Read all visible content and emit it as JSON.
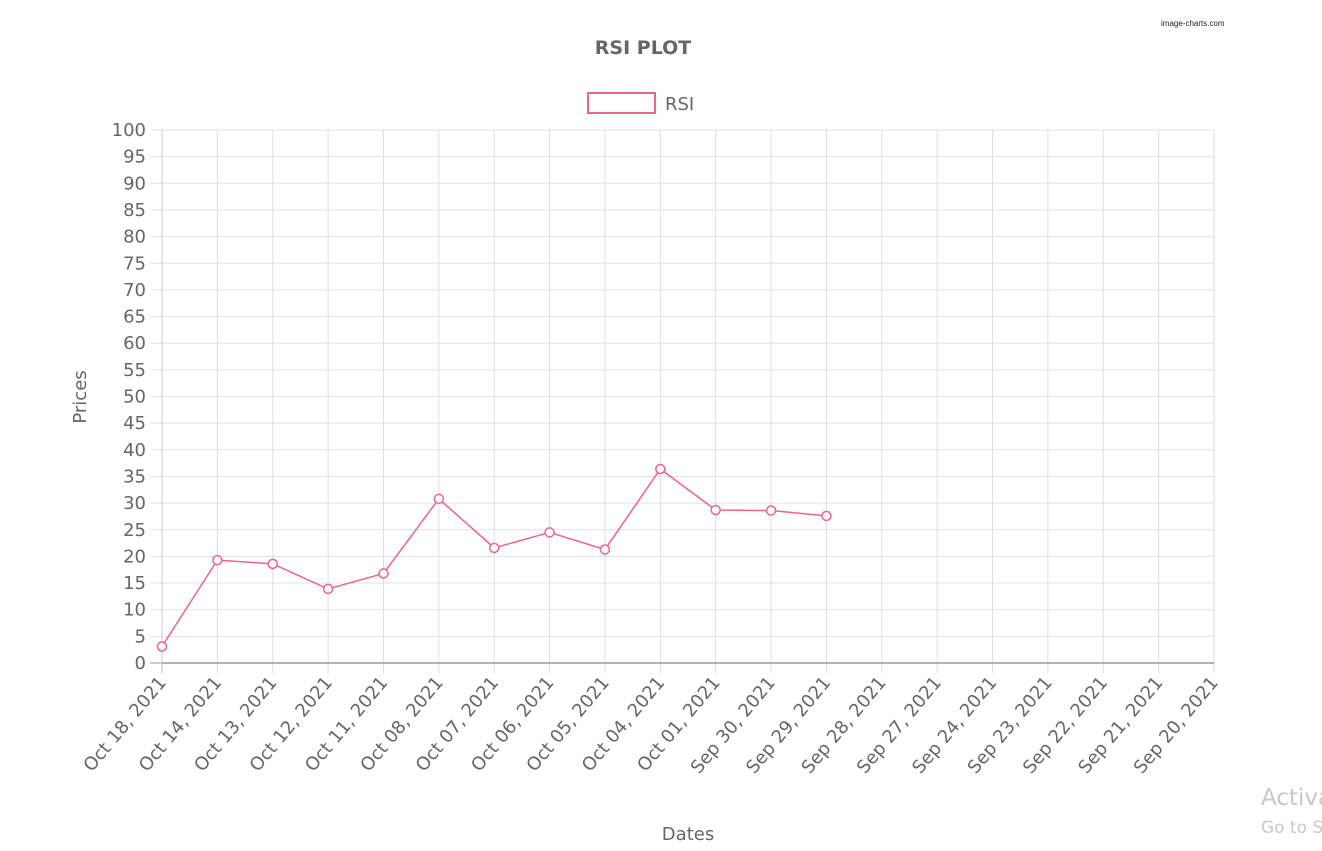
{
  "watermark": "image-charts.com",
  "overlay": {
    "activate_text": "Activa",
    "activate_sub": "Go to S"
  },
  "chart_data": {
    "type": "line",
    "title": "RSI PLOT",
    "xlabel": "Dates",
    "ylabel": "Prices",
    "ylim": [
      0,
      100
    ],
    "ytick_step": 5,
    "grid": true,
    "legend": "top",
    "categories": [
      "Oct 18, 2021",
      "Oct 14, 2021",
      "Oct 13, 2021",
      "Oct 12, 2021",
      "Oct 11, 2021",
      "Oct 08, 2021",
      "Oct 07, 2021",
      "Oct 06, 2021",
      "Oct 05, 2021",
      "Oct 04, 2021",
      "Oct 01, 2021",
      "Sep 30, 2021",
      "Sep 29, 2021",
      "Sep 28, 2021",
      "Sep 27, 2021",
      "Sep 24, 2021",
      "Sep 23, 2021",
      "Sep 22, 2021",
      "Sep 21, 2021",
      "Sep 20, 2021"
    ],
    "series": [
      {
        "name": "RSI",
        "color": "#f0648c",
        "values": [
          3.1,
          19.3,
          18.6,
          13.9,
          16.8,
          30.8,
          21.6,
          24.5,
          21.3,
          36.4,
          28.7,
          28.6,
          27.6,
          null,
          null,
          null,
          null,
          null,
          null,
          null
        ]
      }
    ]
  }
}
